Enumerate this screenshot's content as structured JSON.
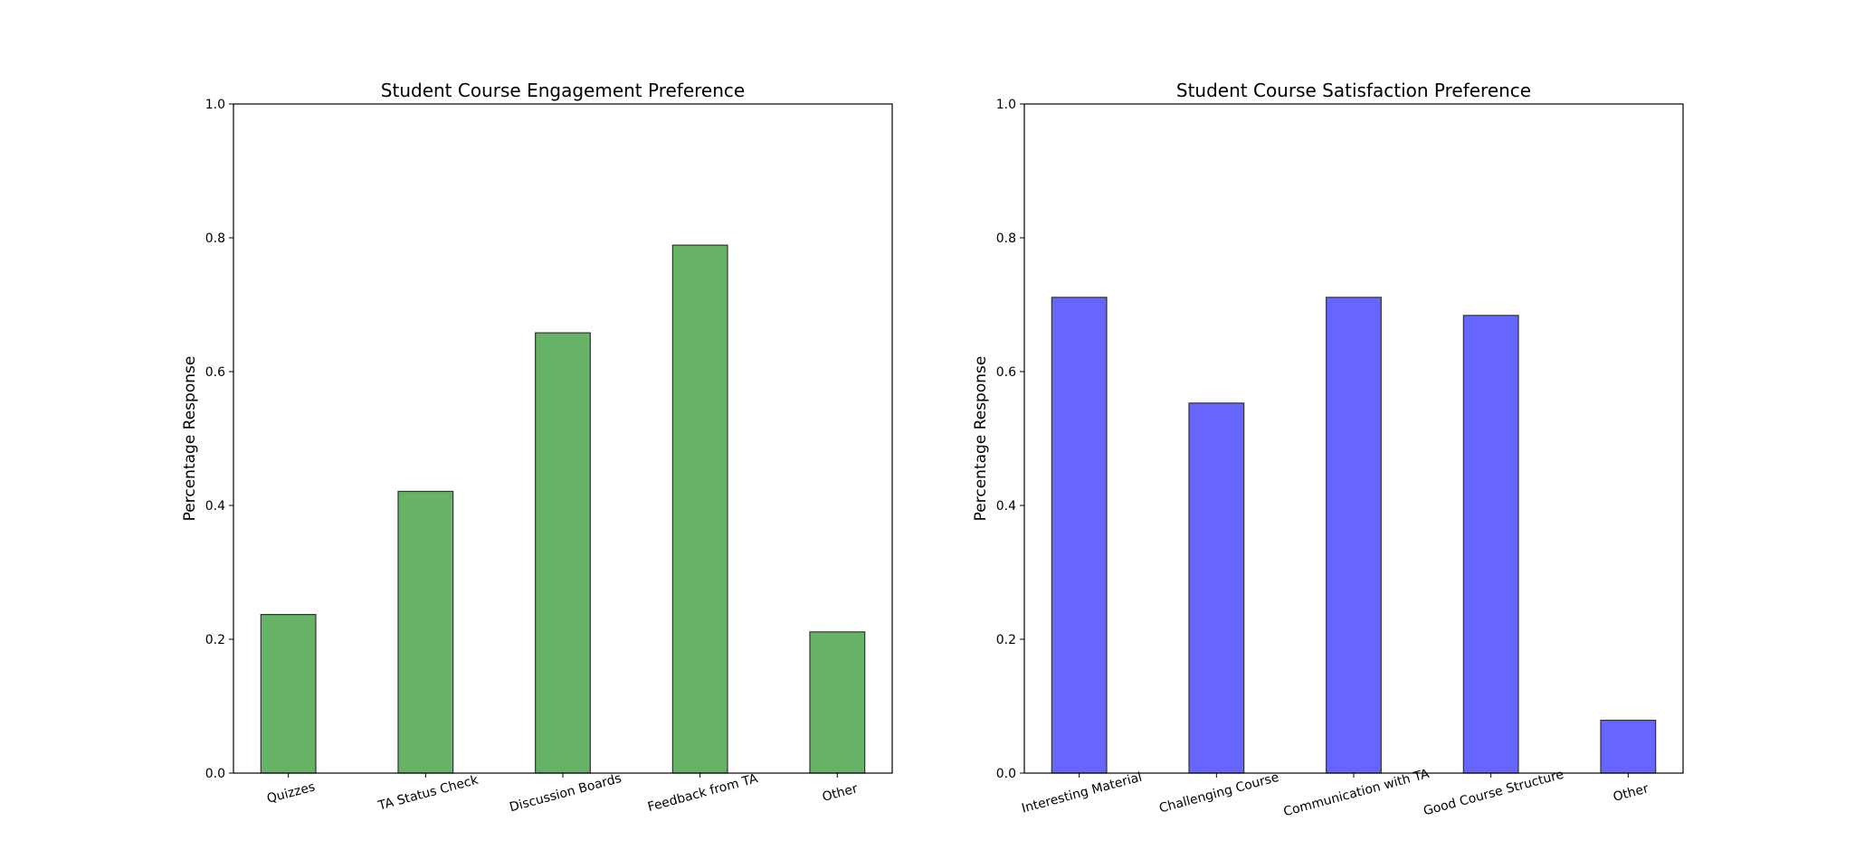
{
  "chart_data": [
    {
      "type": "bar",
      "title": "Student Course Engagement Preference",
      "xlabel": "",
      "ylabel": "Percentage Response",
      "ylim": [
        0,
        1.0
      ],
      "yticks": [
        "0.0",
        "0.2",
        "0.4",
        "0.6",
        "0.8",
        "1.0"
      ],
      "grid": false,
      "color": "#66b266",
      "categories": [
        "Quizzes",
        "TA Status Check",
        "Discussion Boards",
        "Feedback from TA",
        "Other"
      ],
      "values": [
        0.237,
        0.421,
        0.658,
        0.789,
        0.211
      ]
    },
    {
      "type": "bar",
      "title": "Student Course Satisfaction Preference",
      "xlabel": "",
      "ylabel": "Percentage Response",
      "ylim": [
        0,
        1.0
      ],
      "yticks": [
        "0.0",
        "0.2",
        "0.4",
        "0.6",
        "0.8",
        "1.0"
      ],
      "grid": false,
      "color": "#6666ff",
      "categories": [
        "Interesting Material",
        "Challenging Course",
        "Communication with TA",
        "Good Course Structure",
        "Other"
      ],
      "values": [
        0.711,
        0.553,
        0.711,
        0.684,
        0.079
      ]
    }
  ]
}
